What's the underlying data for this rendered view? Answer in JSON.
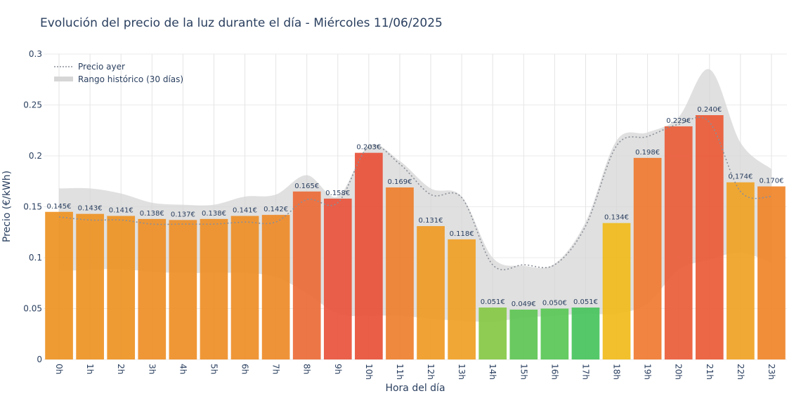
{
  "chart_data": {
    "type": "bar",
    "title": "Evolución del precio de la luz durante el día - Miércoles 11/06/2025",
    "xlabel": "Hora del día",
    "ylabel": "Precio (€/kWh)",
    "ylim": [
      0,
      0.3
    ],
    "yticks": [
      {
        "value": 0,
        "label": "0"
      },
      {
        "value": 0.05,
        "label": "0.05"
      },
      {
        "value": 0.1,
        "label": "0.1"
      },
      {
        "value": 0.15,
        "label": "0.15"
      },
      {
        "value": 0.2,
        "label": "0.2"
      },
      {
        "value": 0.25,
        "label": "0.25"
      },
      {
        "value": 0.3,
        "label": "0.3"
      }
    ],
    "grid": true,
    "legend_position": "top-left",
    "categories": [
      "0h",
      "1h",
      "2h",
      "3h",
      "4h",
      "5h",
      "6h",
      "7h",
      "8h",
      "9h",
      "10h",
      "11h",
      "12h",
      "13h",
      "14h",
      "15h",
      "16h",
      "17h",
      "18h",
      "19h",
      "20h",
      "21h",
      "22h",
      "23h"
    ],
    "values": [
      0.145,
      0.143,
      0.141,
      0.138,
      0.137,
      0.138,
      0.141,
      0.142,
      0.165,
      0.158,
      0.203,
      0.169,
      0.131,
      0.118,
      0.051,
      0.049,
      0.05,
      0.051,
      0.134,
      0.198,
      0.229,
      0.24,
      0.174,
      0.17
    ],
    "value_labels": [
      "0.145€",
      "0.143€",
      "0.141€",
      "0.138€",
      "0.137€",
      "0.138€",
      "0.141€",
      "0.142€",
      "0.165€",
      "0.158€",
      "0.203€",
      "0.169€",
      "0.131€",
      "0.118€",
      "0.051€",
      "0.049€",
      "0.050€",
      "0.051€",
      "0.134€",
      "0.198€",
      "0.229€",
      "0.240€",
      "0.174€",
      "0.170€"
    ],
    "bar_colors": [
      "#ee9223",
      "#ee9223",
      "#ee9223",
      "#ee8e26",
      "#ee8e26",
      "#ee8e26",
      "#ee8e26",
      "#ee8a28",
      "#eb6a37",
      "#e8533b",
      "#e85038",
      "#ee7f2d",
      "#ef9a24",
      "#f0a024",
      "#86c845",
      "#5dc452",
      "#58c755",
      "#46c45c",
      "#f0bb1a",
      "#ef7a30",
      "#ea5c38",
      "#ea5a36",
      "#f0a224",
      "#ef8429"
    ],
    "series": [
      {
        "name": "Precio ayer",
        "type": "line",
        "style": "dotted",
        "color": "#8a8f98",
        "values": [
          0.14,
          0.137,
          0.137,
          0.133,
          0.133,
          0.133,
          0.135,
          0.135,
          0.157,
          0.154,
          0.209,
          0.192,
          0.162,
          0.159,
          0.093,
          0.093,
          0.093,
          0.131,
          0.21,
          0.219,
          0.231,
          0.233,
          0.165,
          0.16
        ]
      },
      {
        "name": "Rango histórico (30 días)",
        "type": "band",
        "color": "#d6d6d6",
        "upper": [
          0.168,
          0.168,
          0.163,
          0.154,
          0.152,
          0.152,
          0.16,
          0.162,
          0.181,
          0.16,
          0.21,
          0.195,
          0.168,
          0.16,
          0.1,
          0.092,
          0.094,
          0.135,
          0.215,
          0.223,
          0.238,
          0.285,
          0.213,
          0.187
        ],
        "lower": [
          0.087,
          0.088,
          0.089,
          0.086,
          0.085,
          0.085,
          0.085,
          0.081,
          0.065,
          0.045,
          0.043,
          0.043,
          0.04,
          0.038,
          0.037,
          0.041,
          0.043,
          0.045,
          0.045,
          0.055,
          0.088,
          0.098,
          0.105,
          0.095
        ]
      }
    ]
  }
}
